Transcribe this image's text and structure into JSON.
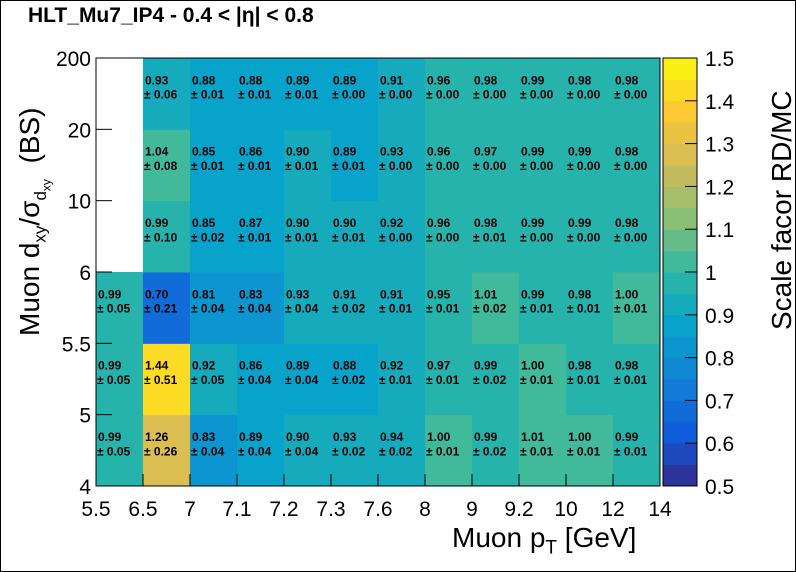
{
  "chart_data": {
    "type": "heatmap",
    "title": "HLT_Mu7_IP4  -  0.4 < |η| < 0.8",
    "xlabel": {
      "main": "Muon p",
      "sub": "T",
      "unit": " [GeV]"
    },
    "ylabel": {
      "main": "Muon d",
      "sub1": "xy",
      "slash": "/σ",
      "sub2": "d",
      "subsub": "xy",
      "unit": "  (BS)"
    },
    "zlabel": "Scale facor RD/MC",
    "x_tick_labels": [
      "5.5",
      "6.5",
      "7",
      "7.1",
      "7.2",
      "7.3",
      "7.6",
      "8",
      "9",
      "9.2",
      "10",
      "12",
      "14"
    ],
    "y_tick_labels": [
      "4",
      "5",
      "5.5",
      "6",
      "10",
      "20",
      "200"
    ],
    "z_tick_labels": [
      "0.5",
      "0.6",
      "0.7",
      "0.8",
      "0.9",
      "1",
      "1.1",
      "1.2",
      "1.3",
      "1.4",
      "1.5"
    ],
    "zlim": [
      0.5,
      1.5
    ],
    "grid": false,
    "rows": [
      {
        "y_bin": [
          "4",
          "5"
        ],
        "values": [
          0.99,
          1.26,
          0.83,
          0.89,
          0.9,
          0.93,
          0.94,
          1.0,
          0.99,
          1.01,
          1.0,
          0.99
        ],
        "errors": [
          0.05,
          0.26,
          0.04,
          0.04,
          0.04,
          0.02,
          0.02,
          0.01,
          0.02,
          0.01,
          0.01,
          0.01
        ]
      },
      {
        "y_bin": [
          "5",
          "5.5"
        ],
        "values": [
          0.99,
          1.44,
          0.92,
          0.86,
          0.89,
          0.88,
          0.92,
          0.97,
          0.99,
          1.0,
          0.98,
          0.98
        ],
        "errors": [
          0.05,
          0.51,
          0.05,
          0.04,
          0.04,
          0.02,
          0.01,
          0.01,
          0.02,
          0.01,
          0.01,
          0.01
        ]
      },
      {
        "y_bin": [
          "5.5",
          "6"
        ],
        "values": [
          0.99,
          0.7,
          0.81,
          0.83,
          0.93,
          0.91,
          0.91,
          0.95,
          1.01,
          0.99,
          0.98,
          1.0
        ],
        "errors": [
          0.05,
          0.21,
          0.04,
          0.04,
          0.04,
          0.02,
          0.01,
          0.01,
          0.02,
          0.01,
          0.01,
          0.01
        ]
      },
      {
        "y_bin": [
          "6",
          "10"
        ],
        "values": [
          null,
          0.99,
          0.85,
          0.87,
          0.9,
          0.9,
          0.92,
          0.96,
          0.98,
          0.99,
          0.99,
          0.98
        ],
        "errors": [
          null,
          0.1,
          0.02,
          0.01,
          0.01,
          0.01,
          0.0,
          0.0,
          0.01,
          0.0,
          0.0,
          0.0
        ]
      },
      {
        "y_bin": [
          "10",
          "20"
        ],
        "values": [
          null,
          1.04,
          0.85,
          0.86,
          0.9,
          0.89,
          0.93,
          0.96,
          0.97,
          0.99,
          0.99,
          0.98
        ],
        "errors": [
          null,
          0.08,
          0.01,
          0.01,
          0.01,
          0.01,
          0.0,
          0.0,
          0.0,
          0.0,
          0.0,
          0.0
        ]
      },
      {
        "y_bin": [
          "20",
          "200"
        ],
        "values": [
          null,
          0.93,
          0.88,
          0.88,
          0.89,
          0.89,
          0.91,
          0.96,
          0.98,
          0.99,
          0.98,
          0.98
        ],
        "errors": [
          null,
          0.06,
          0.01,
          0.01,
          0.01,
          0.0,
          0.0,
          0.0,
          0.0,
          0.0,
          0.0,
          0.0
        ]
      }
    ]
  }
}
